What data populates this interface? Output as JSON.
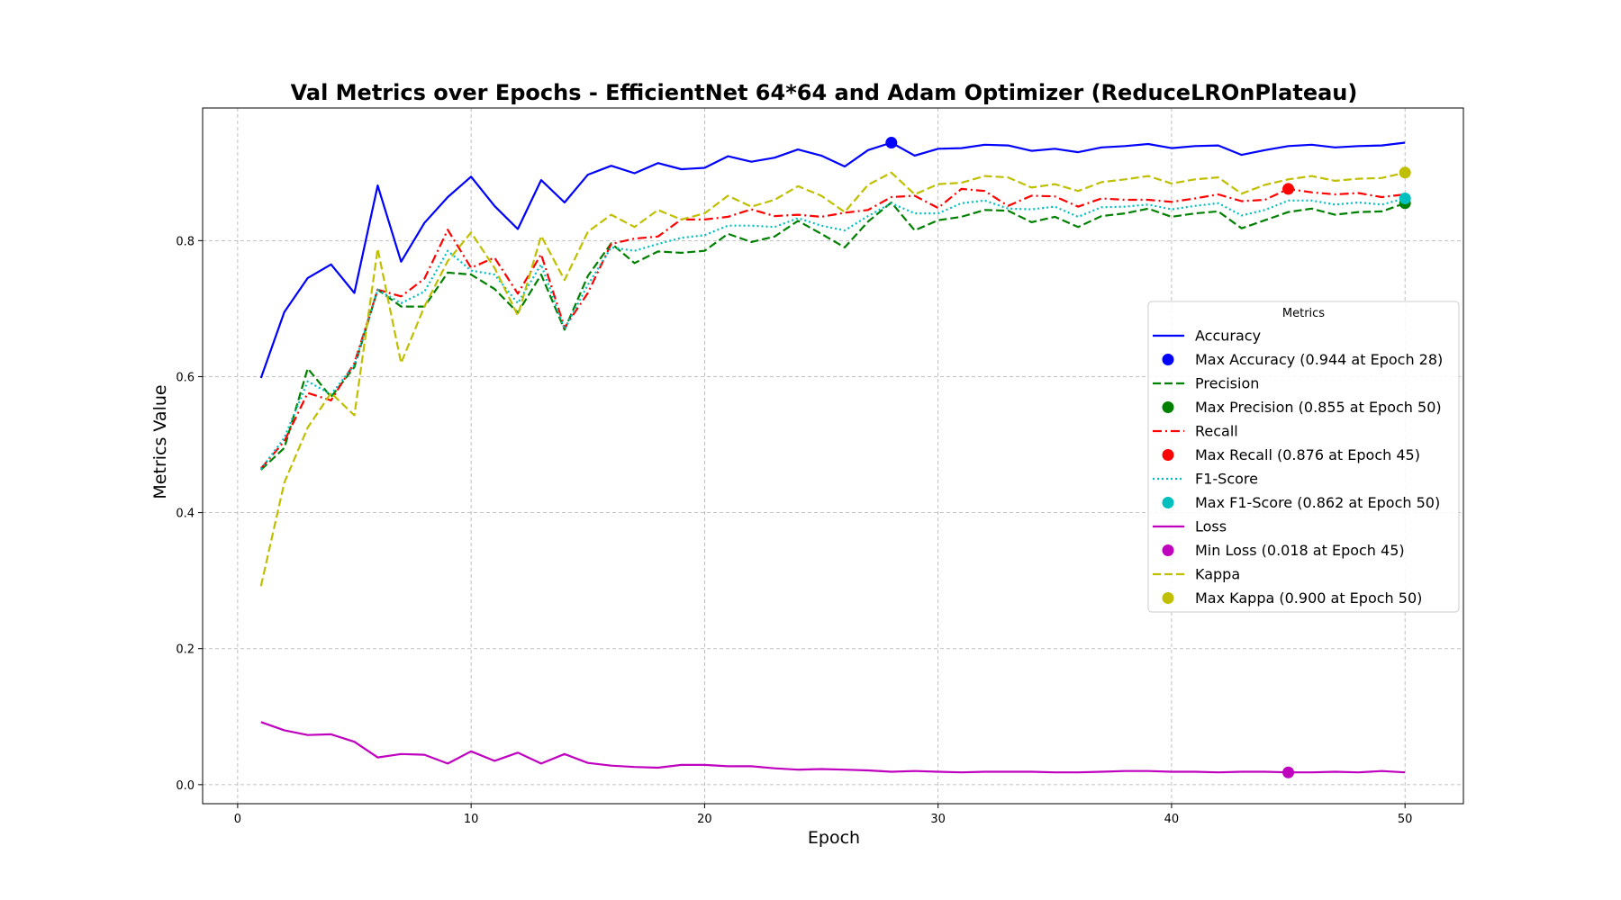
{
  "chart_data": {
    "type": "line",
    "title": "Val Metrics over Epochs - EfficientNet 64*64 and Adam Optimizer (ReduceLROnPlateau)",
    "xlabel": "Epoch",
    "ylabel": "Metrics Value",
    "xlim": [
      -1.5,
      52.5
    ],
    "ylim": [
      -0.028,
      0.995
    ],
    "x_ticks": [
      0,
      10,
      20,
      30,
      40,
      50
    ],
    "x_tick_labels": [
      "0",
      "10",
      "20",
      "30",
      "40",
      "50"
    ],
    "y_ticks": [
      0.0,
      0.2,
      0.4,
      0.6,
      0.8
    ],
    "y_tick_labels": [
      "0.0",
      "0.2",
      "0.4",
      "0.6",
      "0.8"
    ],
    "grid": true,
    "legend": {
      "title": "Metrics",
      "placement": "center-right"
    },
    "x": [
      1,
      2,
      3,
      4,
      5,
      6,
      7,
      8,
      9,
      10,
      11,
      12,
      13,
      14,
      15,
      16,
      17,
      18,
      19,
      20,
      21,
      22,
      23,
      24,
      25,
      26,
      27,
      28,
      29,
      30,
      31,
      32,
      33,
      34,
      35,
      36,
      37,
      38,
      39,
      40,
      41,
      42,
      43,
      44,
      45,
      46,
      47,
      48,
      49,
      50
    ],
    "series": [
      {
        "name": "Accuracy",
        "color": "#0000ff",
        "dash": "solid",
        "values": [
          0.598,
          0.695,
          0.745,
          0.765,
          0.723,
          0.881,
          0.769,
          0.826,
          0.864,
          0.894,
          0.851,
          0.817,
          0.889,
          0.856,
          0.897,
          0.91,
          0.899,
          0.914,
          0.905,
          0.907,
          0.924,
          0.916,
          0.922,
          0.934,
          0.925,
          0.909,
          0.933,
          0.944,
          0.925,
          0.935,
          0.936,
          0.941,
          0.94,
          0.932,
          0.935,
          0.93,
          0.937,
          0.939,
          0.942,
          0.936,
          0.939,
          0.94,
          0.926,
          0.933,
          0.939,
          0.941,
          0.937,
          0.939,
          0.94,
          0.944
        ],
        "marker": {
          "name": "Max Accuracy (0.944 at Epoch 28)",
          "x": 28,
          "y": 0.944
        }
      },
      {
        "name": "Precision",
        "color": "#008000",
        "dash": "dashed",
        "values": [
          0.463,
          0.495,
          0.612,
          0.57,
          0.614,
          0.728,
          0.703,
          0.703,
          0.753,
          0.75,
          0.729,
          0.694,
          0.75,
          0.669,
          0.748,
          0.796,
          0.767,
          0.784,
          0.782,
          0.785,
          0.81,
          0.798,
          0.806,
          0.829,
          0.81,
          0.79,
          0.828,
          0.856,
          0.815,
          0.83,
          0.835,
          0.845,
          0.844,
          0.827,
          0.835,
          0.82,
          0.836,
          0.84,
          0.847,
          0.835,
          0.84,
          0.843,
          0.818,
          0.83,
          0.842,
          0.847,
          0.838,
          0.842,
          0.843,
          0.855
        ],
        "marker": {
          "name": "Max Precision (0.855 at Epoch 50)",
          "x": 50,
          "y": 0.855
        }
      },
      {
        "name": "Recall",
        "color": "#ff0000",
        "dash": "dashdot",
        "values": [
          0.465,
          0.505,
          0.576,
          0.565,
          0.62,
          0.728,
          0.718,
          0.744,
          0.816,
          0.76,
          0.775,
          0.722,
          0.78,
          0.672,
          0.723,
          0.795,
          0.803,
          0.806,
          0.831,
          0.831,
          0.835,
          0.846,
          0.836,
          0.838,
          0.835,
          0.841,
          0.845,
          0.864,
          0.866,
          0.848,
          0.876,
          0.873,
          0.851,
          0.866,
          0.865,
          0.85,
          0.862,
          0.86,
          0.86,
          0.857,
          0.862,
          0.868,
          0.858,
          0.86,
          0.876,
          0.871,
          0.868,
          0.87,
          0.864,
          0.868
        ],
        "marker": {
          "name": "Max Recall (0.876 at Epoch 45)",
          "x": 45,
          "y": 0.876
        }
      },
      {
        "name": "F1-Score",
        "color": "#00bfbf",
        "dash": "dotted",
        "values": [
          0.464,
          0.51,
          0.593,
          0.574,
          0.617,
          0.728,
          0.708,
          0.725,
          0.785,
          0.756,
          0.75,
          0.708,
          0.765,
          0.67,
          0.735,
          0.79,
          0.785,
          0.795,
          0.804,
          0.808,
          0.822,
          0.822,
          0.82,
          0.833,
          0.822,
          0.815,
          0.836,
          0.855,
          0.84,
          0.84,
          0.855,
          0.859,
          0.847,
          0.846,
          0.85,
          0.835,
          0.849,
          0.85,
          0.853,
          0.846,
          0.851,
          0.855,
          0.837,
          0.845,
          0.859,
          0.859,
          0.853,
          0.856,
          0.853,
          0.862
        ],
        "marker": {
          "name": "Max F1-Score (0.862 at Epoch 50)",
          "x": 50,
          "y": 0.862
        }
      },
      {
        "name": "Loss",
        "color": "#bf00bf",
        "dash": "solid",
        "values": [
          0.092,
          0.08,
          0.073,
          0.074,
          0.063,
          0.04,
          0.045,
          0.044,
          0.031,
          0.049,
          0.035,
          0.047,
          0.031,
          0.045,
          0.032,
          0.028,
          0.026,
          0.025,
          0.029,
          0.029,
          0.027,
          0.027,
          0.024,
          0.022,
          0.023,
          0.022,
          0.021,
          0.019,
          0.02,
          0.019,
          0.018,
          0.019,
          0.019,
          0.019,
          0.018,
          0.018,
          0.019,
          0.02,
          0.02,
          0.019,
          0.019,
          0.018,
          0.019,
          0.019,
          0.018,
          0.018,
          0.019,
          0.018,
          0.02,
          0.018
        ],
        "marker": {
          "name": "Min Loss (0.018 at Epoch 45)",
          "x": 45,
          "y": 0.018
        }
      },
      {
        "name": "Kappa",
        "color": "#bfbf00",
        "dash": "dashed",
        "values": [
          0.292,
          0.444,
          0.525,
          0.576,
          0.543,
          0.788,
          0.62,
          0.703,
          0.77,
          0.812,
          0.76,
          0.69,
          0.807,
          0.742,
          0.813,
          0.838,
          0.82,
          0.845,
          0.831,
          0.84,
          0.866,
          0.85,
          0.86,
          0.88,
          0.866,
          0.842,
          0.882,
          0.9,
          0.868,
          0.883,
          0.885,
          0.895,
          0.893,
          0.878,
          0.883,
          0.873,
          0.886,
          0.89,
          0.895,
          0.884,
          0.89,
          0.893,
          0.869,
          0.882,
          0.89,
          0.895,
          0.888,
          0.891,
          0.892,
          0.9
        ],
        "marker": {
          "name": "Max Kappa (0.900 at Epoch 50)",
          "x": 50,
          "y": 0.9
        }
      }
    ]
  }
}
